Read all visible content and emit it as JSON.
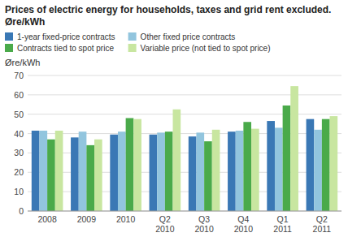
{
  "chart_data": {
    "type": "bar",
    "title": "Prices of electric energy for households, taxes and grid rent excluded. Øre/kWh",
    "ylabel": "Øre/kWh",
    "categories": [
      "2008",
      "2009",
      "2010",
      "Q2\n2010",
      "Q3\n2010",
      "Q4\n2010",
      "Q1\n2011",
      "Q2\n2011"
    ],
    "series": [
      {
        "name": "1-year fixed-price contracts",
        "color": "#3a78b5",
        "values": [
          41.5,
          38.0,
          39.5,
          39.5,
          38.5,
          41.0,
          46.5,
          47.5
        ]
      },
      {
        "name": "Other fixed price contracts",
        "color": "#92c5de",
        "values": [
          41.5,
          41.0,
          41.0,
          40.5,
          40.5,
          41.5,
          43.0,
          42.0
        ]
      },
      {
        "name": "Contracts tied to spot price",
        "color": "#4aaa4a",
        "values": [
          37.0,
          34.0,
          48.0,
          41.0,
          36.0,
          46.0,
          54.5,
          47.5
        ]
      },
      {
        "name": "Variable price (not tied to spot price)",
        "color": "#c8e6a0",
        "values": [
          41.5,
          37.0,
          47.5,
          52.5,
          42.0,
          42.5,
          64.5,
          49.0
        ]
      }
    ],
    "ylim": [
      0,
      70
    ],
    "yticks": [
      0,
      10,
      20,
      30,
      40,
      50,
      60,
      70
    ],
    "grid": true,
    "legend": "top"
  }
}
